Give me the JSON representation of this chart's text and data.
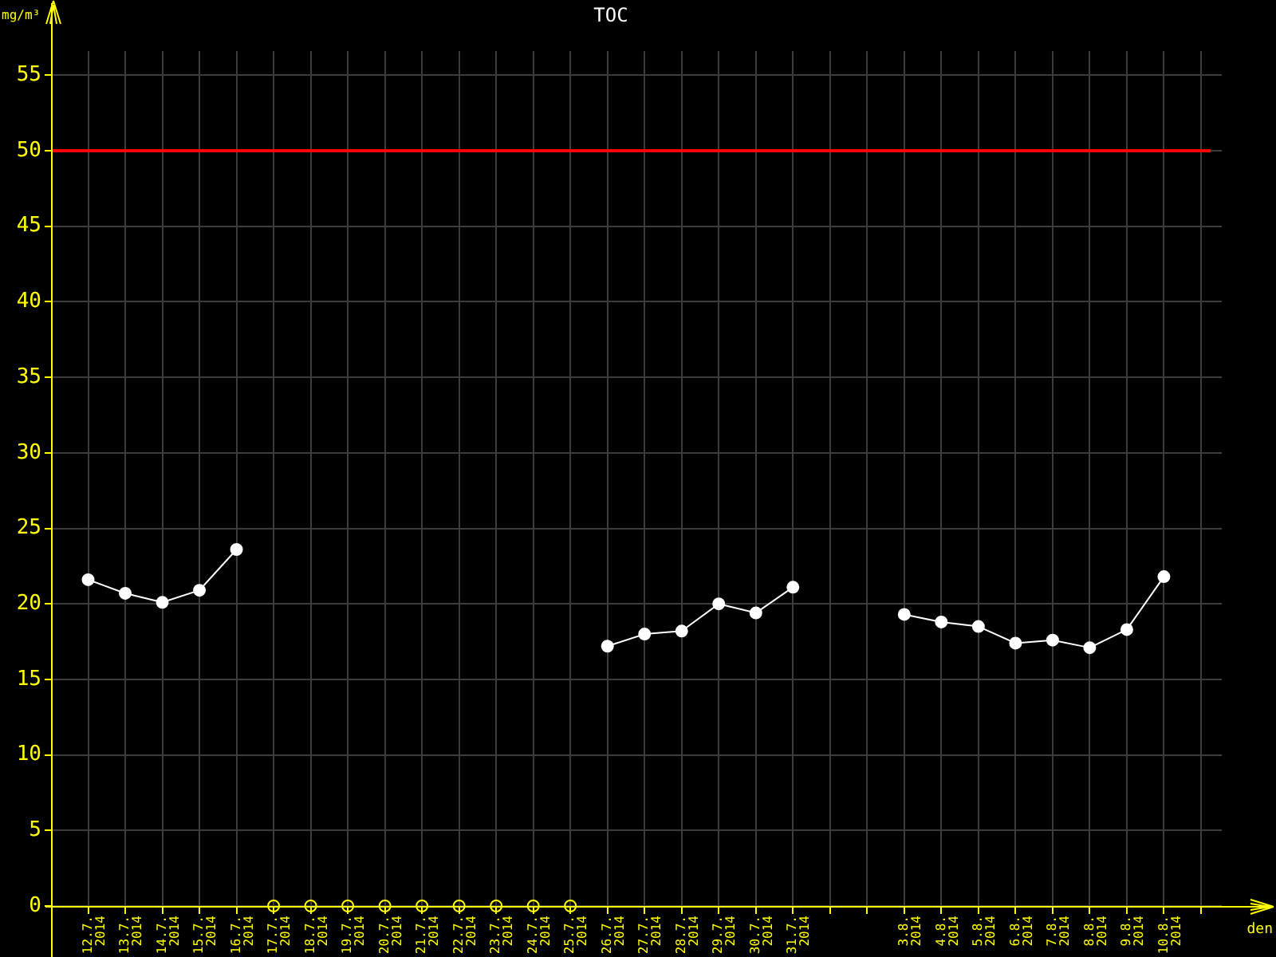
{
  "chart_data": {
    "type": "line",
    "title": "TOC",
    "xlabel": "den",
    "ylabel": "mg/m³",
    "categories": [
      "12.7. 2014",
      "13.7. 2014",
      "14.7. 2014",
      "15.7. 2014",
      "16.7. 2014",
      "17.7. 2014",
      "18.7. 2014",
      "19.7. 2014",
      "20.7. 2014",
      "21.7. 2014",
      "22.7. 2014",
      "23.7. 2014",
      "24.7. 2014",
      "25.7. 2014",
      "26.7. 2014",
      "27.7. 2014",
      "28.7. 2014",
      "29.7. 2014",
      "30.7. 2014",
      "31.7. 2014",
      null,
      null,
      "3.8. 2014",
      "4.8. 2014",
      "5.8. 2014",
      "6.8. 2014",
      "7.8. 2014",
      "8.8. 2014",
      "9.8. 2014",
      "10.8. 2014"
    ],
    "series": [
      {
        "color": "#ffffff",
        "values": [
          21.6,
          20.7,
          20.1,
          20.9,
          23.6,
          null,
          null,
          null,
          null,
          null,
          null,
          null,
          null,
          null,
          17.2,
          18.0,
          18.2,
          20.0,
          19.4,
          21.1,
          null,
          null,
          19.3,
          18.8,
          18.5,
          17.4,
          17.6,
          17.1,
          18.3,
          21.8
        ]
      },
      {
        "type": "scatter",
        "color": "#ffff00",
        "values": [
          null,
          null,
          null,
          null,
          null,
          0,
          0,
          0,
          0,
          0,
          0,
          0,
          0,
          0,
          null,
          null,
          null,
          null,
          null,
          null,
          null,
          null,
          null,
          null,
          null,
          null,
          null,
          null,
          null,
          null
        ]
      }
    ],
    "ylim": [
      0,
      56.6
    ],
    "yticks": [
      0,
      5,
      10,
      15,
      20,
      25,
      30,
      35,
      40,
      45,
      50,
      55
    ],
    "grid": true,
    "marker": "circle",
    "ref_lines": [
      {
        "axis": "y",
        "value": 50,
        "color": "#ff0000"
      }
    ]
  }
}
